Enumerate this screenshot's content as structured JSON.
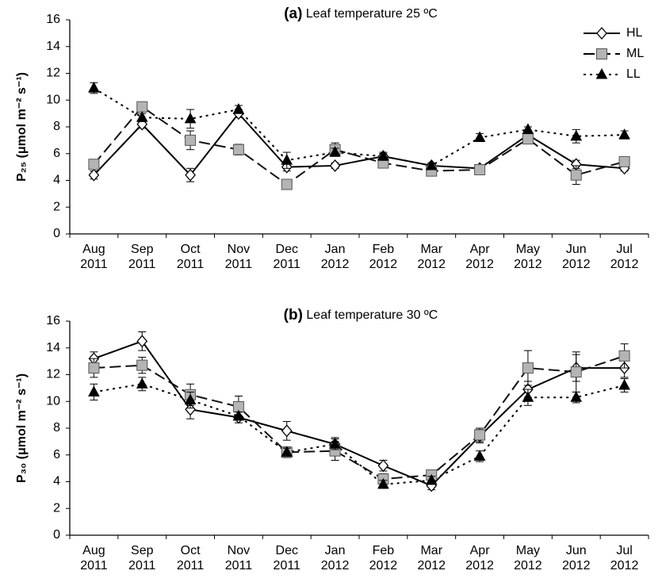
{
  "chart_data": [
    {
      "type": "line",
      "panel_label": "(a)",
      "title": "Leaf temperature 25 ºC",
      "y_label": "P₂₅ (μmol m⁻² s⁻¹)",
      "categories": [
        "Aug\n2011",
        "Sep\n2011",
        "Oct\n2011",
        "Nov\n2011",
        "Dec\n2011",
        "Jan\n2012",
        "Feb\n2012",
        "Mar\n2012",
        "Apr\n2012",
        "May\n2012",
        "Jun\n2012",
        "Jul\n2012"
      ],
      "ylim": [
        0,
        16
      ],
      "yticks": [
        0,
        2,
        4,
        6,
        8,
        10,
        12,
        14,
        16
      ],
      "legend": "upper right",
      "series": [
        {
          "name": "HL",
          "color": "#000000",
          "marker": "diamond",
          "dash": "solid",
          "values": [
            4.4,
            8.2,
            4.4,
            9.0,
            5.0,
            5.1,
            5.8,
            5.1,
            4.9,
            7.4,
            5.2,
            4.9
          ],
          "errors": [
            0.3,
            0.3,
            0.5,
            0.3,
            0.3,
            0.2,
            0.2,
            0.2,
            0.2,
            0.3,
            0.3,
            0.2
          ]
        },
        {
          "name": "ML",
          "color": "#b4b4b4",
          "marker": "square",
          "dash": "dashed",
          "values": [
            5.2,
            9.5,
            7.0,
            6.3,
            3.7,
            6.3,
            5.3,
            4.7,
            4.8,
            7.1,
            4.4,
            5.4
          ],
          "errors": [
            0.3,
            0.3,
            0.7,
            0.4,
            0.3,
            0.5,
            0.3,
            0.2,
            0.2,
            0.3,
            0.7,
            0.3
          ]
        },
        {
          "name": "LL",
          "color": "#000000",
          "marker": "triangle",
          "dash": "dotted",
          "values": [
            10.9,
            8.7,
            8.6,
            9.3,
            5.5,
            6.1,
            5.8,
            5.1,
            7.2,
            7.8,
            7.3,
            7.4
          ],
          "errors": [
            0.4,
            0.3,
            0.7,
            0.3,
            0.6,
            0.3,
            0.3,
            0.2,
            0.3,
            0.2,
            0.5,
            0.3
          ]
        }
      ]
    },
    {
      "type": "line",
      "panel_label": "(b)",
      "title": "Leaf temperature 30 ºC",
      "y_label": "P₃₀ (μmol m⁻² s⁻¹)",
      "categories": [
        "Aug\n2011",
        "Sep\n2011",
        "Oct\n2011",
        "Nov\n2011",
        "Dec\n2011",
        "Jan\n2012",
        "Feb\n2012",
        "Mar\n2012",
        "Apr\n2012",
        "May\n2012",
        "Jun\n2012",
        "Jul\n2012"
      ],
      "ylim": [
        0,
        16
      ],
      "yticks": [
        0,
        2,
        4,
        6,
        8,
        10,
        12,
        14,
        16
      ],
      "series": [
        {
          "color": "#000000",
          "marker": "diamond",
          "dash": "solid",
          "values": [
            13.2,
            14.5,
            9.4,
            8.8,
            7.8,
            6.8,
            5.2,
            3.7,
            7.4,
            10.9,
            12.5,
            12.5
          ],
          "errors": [
            0.5,
            0.7,
            0.7,
            0.4,
            0.7,
            0.5,
            0.4,
            0.3,
            0.5,
            0.6,
            1.0,
            0.7
          ]
        },
        {
          "color": "#b4b4b4",
          "marker": "square",
          "dash": "dashed",
          "values": [
            12.5,
            12.7,
            10.5,
            9.6,
            6.2,
            6.3,
            4.2,
            4.5,
            7.5,
            12.5,
            12.2,
            13.4
          ],
          "errors": [
            0.7,
            0.6,
            0.8,
            0.8,
            0.4,
            0.7,
            0.4,
            0.3,
            0.5,
            1.3,
            1.5,
            0.9
          ]
        },
        {
          "color": "#000000",
          "marker": "triangle",
          "dash": "dotted",
          "values": [
            10.7,
            11.3,
            10.1,
            8.9,
            6.2,
            6.8,
            3.8,
            4.1,
            5.9,
            10.3,
            10.3,
            11.2
          ],
          "errors": [
            0.6,
            0.5,
            0.6,
            0.3,
            0.3,
            0.4,
            0.3,
            0.3,
            0.4,
            0.6,
            0.4,
            0.5
          ]
        }
      ]
    }
  ]
}
